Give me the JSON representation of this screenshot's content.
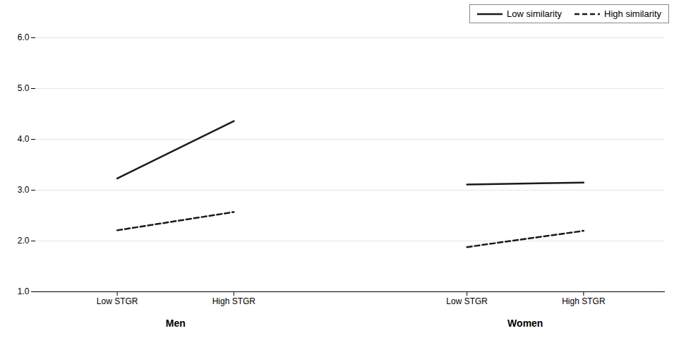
{
  "chart_data": {
    "type": "line",
    "categories": [
      "Low STGR",
      "High STGR",
      null,
      "Low STGR",
      "High STGR"
    ],
    "group_labels": [
      "Men",
      "Women"
    ],
    "series": [
      {
        "name": "Low similarity",
        "color": "#1a1a1a",
        "line_style": "solid",
        "values": [
          3.23,
          4.36,
          null,
          3.11,
          3.15
        ]
      },
      {
        "name": "High similarity",
        "color": "#1a1a1a",
        "line_style": "dashed",
        "values": [
          2.21,
          2.57,
          null,
          1.88,
          2.2
        ]
      }
    ],
    "ylim": [
      1,
      6
    ],
    "yticks": [
      1,
      2,
      3,
      4,
      5,
      6
    ],
    "grid": true,
    "legend": "upper right"
  }
}
